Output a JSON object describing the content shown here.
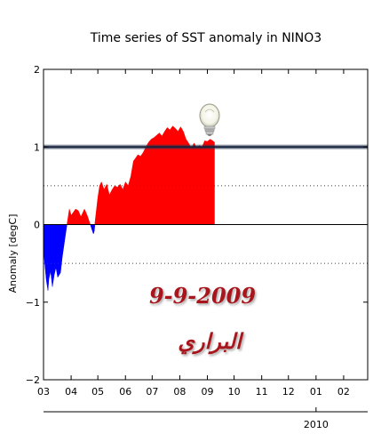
{
  "chart_data": {
    "type": "area",
    "title": "Time series of SST anomaly in NINO3",
    "ylabel": "Anomaly [degC]",
    "xlabel": "",
    "ylim": [
      -2,
      2
    ],
    "xlim": [
      "2009-03-01",
      "2010-02-28"
    ],
    "y_ticks": [
      "2",
      "1",
      "0",
      "−1",
      "−2"
    ],
    "y_tick_values": [
      2,
      1,
      0,
      -1,
      -2
    ],
    "x_tick_labels": [
      "03",
      "04",
      "05",
      "06",
      "07",
      "08",
      "09",
      "10",
      "11",
      "12",
      "01",
      "02"
    ],
    "x_tick_dates": [
      "2009-03-01",
      "2009-04-01",
      "2009-05-01",
      "2009-06-01",
      "2009-07-01",
      "2009-08-01",
      "2009-09-01",
      "2009-10-01",
      "2009-11-01",
      "2009-12-01",
      "2010-01-01",
      "2010-02-01"
    ],
    "year_label": "2010",
    "year_label_date": "2010-01-01",
    "reference_lines": [
      0.5,
      -0.5
    ],
    "highlight_line": 1.0,
    "positive_color": "#ff0000",
    "negative_color": "#0000ff",
    "x": [
      "2009-03-01",
      "2009-03-02",
      "2009-03-04",
      "2009-03-06",
      "2009-03-07",
      "2009-03-09",
      "2009-03-11",
      "2009-03-13",
      "2009-03-15",
      "2009-03-17",
      "2009-03-20",
      "2009-03-22",
      "2009-03-25",
      "2009-03-28",
      "2009-03-30",
      "2009-04-01",
      "2009-04-03",
      "2009-04-06",
      "2009-04-09",
      "2009-04-12",
      "2009-04-16",
      "2009-04-19",
      "2009-04-22",
      "2009-04-24",
      "2009-04-26",
      "2009-04-27",
      "2009-04-28",
      "2009-05-01",
      "2009-05-03",
      "2009-05-05",
      "2009-05-08",
      "2009-05-11",
      "2009-05-14",
      "2009-05-17",
      "2009-05-20",
      "2009-05-23",
      "2009-05-26",
      "2009-05-29",
      "2009-06-01",
      "2009-06-04",
      "2009-06-07",
      "2009-06-10",
      "2009-06-12",
      "2009-06-15",
      "2009-06-18",
      "2009-06-21",
      "2009-06-24",
      "2009-06-27",
      "2009-06-30",
      "2009-07-03",
      "2009-07-06",
      "2009-07-09",
      "2009-07-12",
      "2009-07-15",
      "2009-07-18",
      "2009-07-21",
      "2009-07-24",
      "2009-07-27",
      "2009-07-30",
      "2009-08-02",
      "2009-08-05",
      "2009-08-08",
      "2009-08-11",
      "2009-08-14",
      "2009-08-17",
      "2009-08-20",
      "2009-08-23",
      "2009-08-26",
      "2009-08-29",
      "2009-09-01",
      "2009-09-04",
      "2009-09-07",
      "2009-09-09"
    ],
    "values": [
      -0.25,
      -0.45,
      -0.7,
      -0.85,
      -0.7,
      -0.6,
      -0.8,
      -0.65,
      -0.55,
      -0.68,
      -0.62,
      -0.42,
      -0.18,
      0.05,
      0.2,
      0.12,
      0.15,
      0.2,
      0.18,
      0.1,
      0.2,
      0.12,
      0.02,
      -0.05,
      -0.12,
      -0.08,
      0.05,
      0.35,
      0.5,
      0.55,
      0.45,
      0.52,
      0.38,
      0.45,
      0.5,
      0.48,
      0.52,
      0.45,
      0.55,
      0.5,
      0.62,
      0.82,
      0.85,
      0.9,
      0.88,
      0.93,
      1.0,
      1.06,
      1.1,
      1.12,
      1.15,
      1.18,
      1.14,
      1.2,
      1.25,
      1.22,
      1.27,
      1.24,
      1.2,
      1.26,
      1.2,
      1.1,
      1.05,
      0.98,
      1.05,
      0.99,
      1.02,
      1.0,
      1.08,
      1.07,
      1.1,
      1.08,
      1.06
    ]
  },
  "annotations": {
    "date_stamp": "9-9-2009",
    "signature": "البراري"
  },
  "icons": {
    "marker": "lightbulb-icon"
  }
}
